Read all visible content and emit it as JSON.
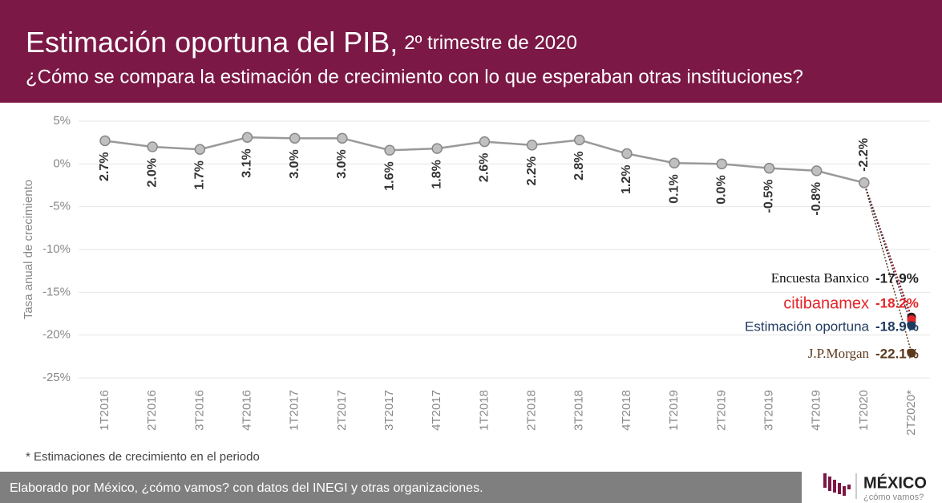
{
  "chart_data": {
    "type": "line",
    "title": "Estimación oportuna del PIB,",
    "title_period": "2º trimestre de 2020",
    "subtitle": "¿Cómo se compara la estimación de crecimiento con lo que esperaban otras instituciones?",
    "y_label": "Tasa anual de crecimiento",
    "footnote": "* Estimaciones de crecimiento en el periodo",
    "categories": [
      "1T2016",
      "2T2016",
      "3T2016",
      "4T2016",
      "1T2017",
      "2T2017",
      "3T2017",
      "4T2017",
      "1T2018",
      "2T2018",
      "3T2018",
      "4T2018",
      "1T2019",
      "2T2019",
      "3T2019",
      "4T2019",
      "1T2020",
      "2T2020*"
    ],
    "ylim": [
      -25,
      5
    ],
    "yticks": [
      {
        "value": 5,
        "label": "5%"
      },
      {
        "value": 0,
        "label": "0%"
      },
      {
        "value": -5,
        "label": "-5%"
      },
      {
        "value": -10,
        "label": "-10%"
      },
      {
        "value": -15,
        "label": "-15%"
      },
      {
        "value": -20,
        "label": "-20%"
      },
      {
        "value": -25,
        "label": "-25%"
      }
    ],
    "grid": true,
    "series": [
      {
        "name": "PIB",
        "color": "#999999",
        "values": [
          2.7,
          2.0,
          1.7,
          3.1,
          3.0,
          3.0,
          1.6,
          1.8,
          2.6,
          2.2,
          2.8,
          1.2,
          0.1,
          0.0,
          -0.5,
          -0.8,
          -2.2,
          null
        ],
        "value_labels": [
          "2.7%",
          "2.0%",
          "1.7%",
          "3.1%",
          "3.0%",
          "3.0%",
          "1.6%",
          "1.8%",
          "2.6%",
          "2.2%",
          "2.8%",
          "1.2%",
          "0.1%",
          "0.0%",
          "-0.5%",
          "-0.8%",
          "-2.2%",
          null
        ]
      },
      {
        "name": "Encuesta Banxico",
        "color": "#2a1a1a",
        "values": [
          null,
          null,
          null,
          null,
          null,
          null,
          null,
          null,
          null,
          null,
          null,
          null,
          null,
          null,
          null,
          null,
          -2.2,
          -17.9
        ],
        "value_labels": [
          null,
          null,
          null,
          null,
          null,
          null,
          null,
          null,
          null,
          null,
          null,
          null,
          null,
          null,
          null,
          null,
          null,
          "-17.9%"
        ]
      },
      {
        "name": "citibanamex",
        "color": "#e3262a",
        "values": [
          null,
          null,
          null,
          null,
          null,
          null,
          null,
          null,
          null,
          null,
          null,
          null,
          null,
          null,
          null,
          null,
          -2.2,
          -18.2
        ],
        "value_labels": [
          null,
          null,
          null,
          null,
          null,
          null,
          null,
          null,
          null,
          null,
          null,
          null,
          null,
          null,
          null,
          null,
          null,
          "-18.2%"
        ]
      },
      {
        "name": "Estimación oportuna",
        "color": "#1f3a5f",
        "values": [
          null,
          null,
          null,
          null,
          null,
          null,
          null,
          null,
          null,
          null,
          null,
          null,
          null,
          null,
          null,
          null,
          -2.2,
          -18.9
        ],
        "value_labels": [
          null,
          null,
          null,
          null,
          null,
          null,
          null,
          null,
          null,
          null,
          null,
          null,
          null,
          null,
          null,
          null,
          null,
          "-18.9%"
        ]
      },
      {
        "name": "J.P.Morgan",
        "color": "#5c3a1e",
        "values": [
          null,
          null,
          null,
          null,
          null,
          null,
          null,
          null,
          null,
          null,
          null,
          null,
          null,
          null,
          null,
          null,
          -2.2,
          -22.1
        ],
        "value_labels": [
          null,
          null,
          null,
          null,
          null,
          null,
          null,
          null,
          null,
          null,
          null,
          null,
          null,
          null,
          null,
          null,
          null,
          "-22.1%"
        ]
      }
    ]
  },
  "source": "Elaborado por México, ¿cómo vamos? con datos del INEGI y otras organizaciones.",
  "logo": {
    "title": "MÉXICO",
    "subtitle": "¿cómo vamos?"
  }
}
